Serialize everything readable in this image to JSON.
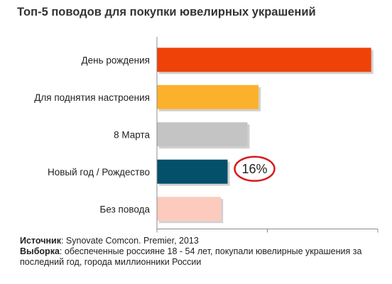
{
  "chart_data": {
    "type": "bar",
    "orientation": "horizontal",
    "title": "Топ-5 поводов для покупки ювелирных украшений",
    "categories": [
      "День рождения",
      "Для поднятия настроения",
      "8 Марта",
      "Новый год / Рождество",
      "Без повода"
    ],
    "values": [
      48.5,
      23,
      20.5,
      16,
      14.5
    ],
    "colors": [
      "#ee4209",
      "#fbb12c",
      "#c4c4c4",
      "#04506b",
      "#fdcbbd"
    ],
    "xlim": [
      0,
      50
    ],
    "xticks": [
      "0",
      "25",
      "50"
    ],
    "grid": false,
    "legend": "none",
    "annotation": {
      "category": "Новый год / Рождество",
      "text": "16%",
      "ring_color": "#d8191c"
    }
  },
  "footer": {
    "source_label": "Источник",
    "source_text": ": Synovate Comcon. Premier, 2013",
    "sample_label": "Выборка",
    "sample_text": ": обеспеченные россияне 18 - 54 лет, покупали ювелирные украшения за последний год, города миллионники России"
  }
}
